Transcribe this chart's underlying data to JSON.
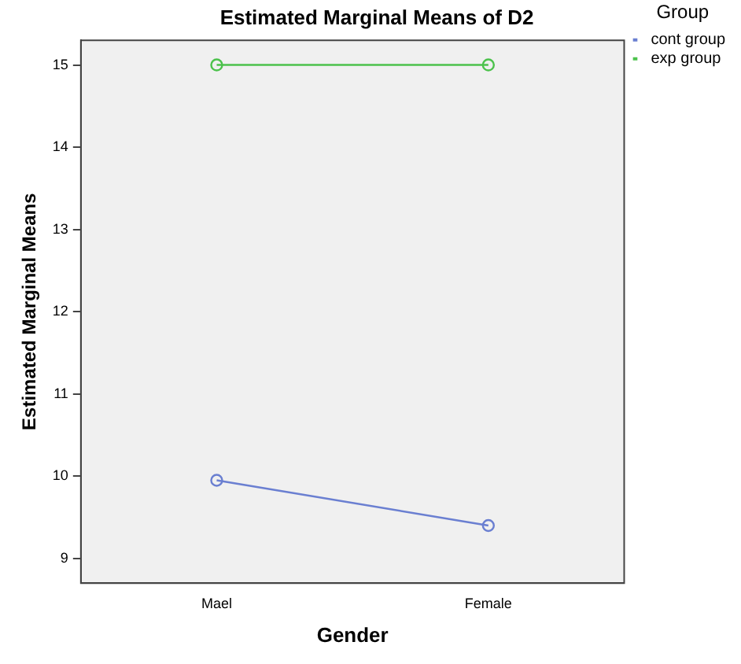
{
  "chart_data": {
    "type": "line",
    "title": "Estimated Marginal Means of D2",
    "xlabel": "Gender",
    "ylabel": "Estimated Marginal Means",
    "legend_title": "Group",
    "categories": [
      "Mael",
      "Female"
    ],
    "series": [
      {
        "name": "cont group",
        "color": "#6a7fd1",
        "values": [
          9.95,
          9.4
        ]
      },
      {
        "name": "exp group",
        "color": "#4cc24c",
        "values": [
          15,
          15
        ]
      }
    ],
    "ylim": [
      8.7,
      15.3
    ],
    "yticks": [
      9,
      10,
      11,
      12,
      13,
      14,
      15
    ],
    "grid": false,
    "legend": "top right",
    "marker": "circle",
    "line_style": "solid"
  }
}
